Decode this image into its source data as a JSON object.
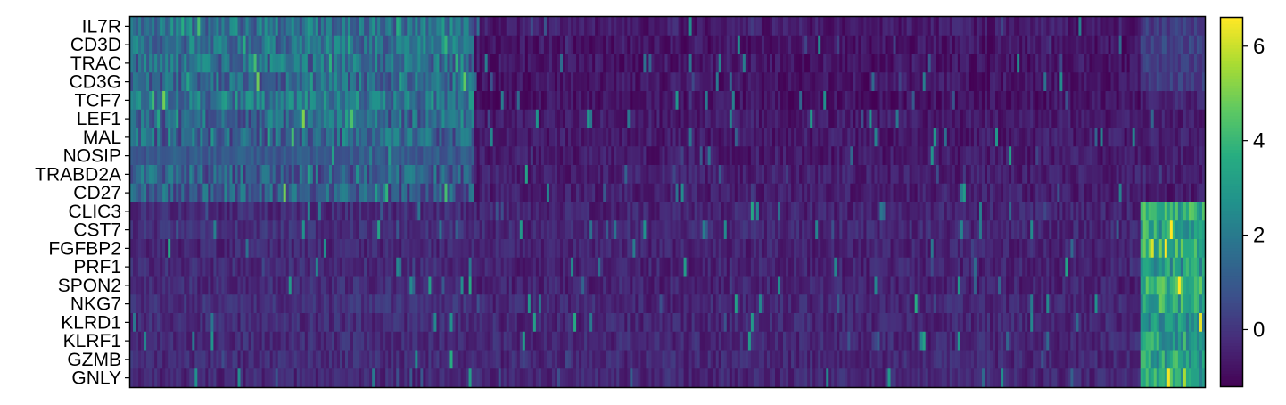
{
  "chart_data": {
    "type": "heatmap",
    "title": "",
    "xlabel": "",
    "ylabel": "",
    "colormap": "viridis",
    "genes": [
      "IL7R",
      "CD3D",
      "TRAC",
      "CD3G",
      "TCF7",
      "LEF1",
      "MAL",
      "NOSIP",
      "TRABD2A",
      "CD27",
      "CLIC3",
      "CST7",
      "FGFBP2",
      "PRF1",
      "SPON2",
      "NKG7",
      "KLRD1",
      "KLRF1",
      "GZMB",
      "GNLY"
    ],
    "value_range": [
      -1.2,
      6.6
    ],
    "colorbar": {
      "ticks": [
        0,
        2,
        4,
        6
      ],
      "tick_labels": [
        "0",
        "2",
        "4",
        "6"
      ]
    },
    "cell_groups": [
      {
        "share": 0.32,
        "mean_by_gene": [
          1.8,
          1.7,
          1.6,
          1.5,
          1.9,
          1.4,
          1.3,
          1.0,
          1.2,
          1.1,
          -0.2,
          -0.1,
          -0.3,
          -0.2,
          -0.2,
          -0.1,
          -0.2,
          -0.2,
          -0.2,
          -0.3
        ]
      },
      {
        "share": 0.62,
        "mean_by_gene": [
          -0.6,
          -0.7,
          -0.7,
          -0.7,
          -0.8,
          -0.6,
          -0.6,
          -0.6,
          -0.5,
          -0.5,
          -0.4,
          -0.3,
          -0.4,
          -0.4,
          -0.4,
          -0.3,
          -0.3,
          -0.3,
          -0.3,
          -0.3
        ]
      },
      {
        "share": 0.06,
        "mean_by_gene": [
          0.2,
          0.4,
          0.3,
          0.2,
          -0.4,
          -0.5,
          -0.5,
          -0.5,
          -0.4,
          -0.6,
          3.5,
          3.2,
          3.8,
          3.0,
          3.6,
          3.4,
          3.0,
          3.1,
          3.3,
          3.4
        ]
      }
    ]
  }
}
